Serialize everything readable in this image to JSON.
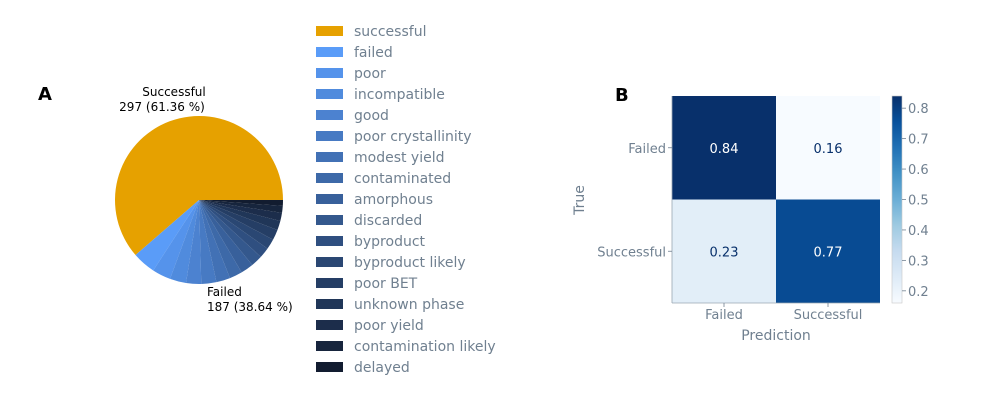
{
  "colors": {
    "successful": "#e6a100",
    "axis_text": "#708090",
    "failed_palette_light": "#5a9cf8",
    "failed_palette_dark": "#121c30",
    "cmap_low": "#f7fbff",
    "cmap_high": "#08306b"
  },
  "chart_data": [
    {
      "panel": "A",
      "type": "pie",
      "slices": [
        {
          "label": "Successful",
          "value": 297,
          "text": "297 (61.36 %)"
        },
        {
          "label": "Failed",
          "value": 187,
          "text": "187 (38.64 %)"
        }
      ],
      "failed_breakdown": {
        "legend": [
          "successful",
          "failed",
          "poor",
          "incompatible",
          "good",
          "poor crystallinity",
          "modest yield",
          "contaminated",
          "amorphous",
          "discarded",
          "byproduct",
          "byproduct likely",
          "poor BET",
          "unknown phase",
          "poor yield",
          "contamination likely",
          "delayed"
        ],
        "values": [
          null,
          20,
          16,
          14,
          13,
          13,
          12,
          11,
          11,
          10,
          9,
          9,
          9,
          8,
          7,
          6,
          5
        ]
      },
      "legend_position": "right of pie"
    },
    {
      "panel": "B",
      "type": "heatmap",
      "title": "",
      "xlabel": "Prediction",
      "ylabel": "True",
      "x_categories": [
        "Failed",
        "Successful"
      ],
      "y_categories": [
        "Failed",
        "Successful"
      ],
      "values": [
        [
          0.84,
          0.16
        ],
        [
          0.23,
          0.77
        ]
      ],
      "colorbar": {
        "min": 0.16,
        "max": 0.84,
        "ticks": [
          "0.2",
          "0.3",
          "0.4",
          "0.5",
          "0.6",
          "0.7",
          "0.8"
        ]
      },
      "colormap": "Blues"
    }
  ]
}
